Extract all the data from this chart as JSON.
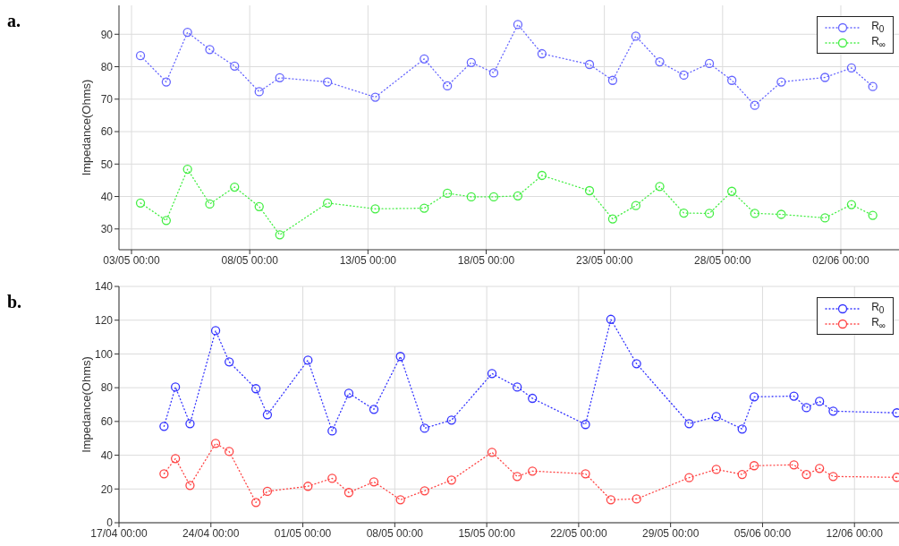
{
  "chart_data": [
    {
      "type": "line",
      "annotations": [
        "a."
      ],
      "ylabel": "Impedance(Ohms)",
      "xlim": [
        "--05-02T11:17",
        "--06-04T11:02"
      ],
      "ylim": [
        23.6,
        98.9
      ],
      "xticks": [
        {
          "value": "--05-03",
          "label": "03/05 00:00"
        },
        {
          "value": "--05-08",
          "label": "08/05 00:00"
        },
        {
          "value": "--05-13",
          "label": "13/05 00:00"
        },
        {
          "value": "--05-18",
          "label": "18/05 00:00"
        },
        {
          "value": "--05-23",
          "label": "23/05 00:00"
        },
        {
          "value": "--05-28",
          "label": "28/05 00:00"
        },
        {
          "value": "--06-02",
          "label": "02/06 00:00"
        }
      ],
      "yticks": [
        30,
        40,
        50,
        60,
        70,
        80,
        90
      ],
      "grid": true,
      "legend": "top right",
      "marker": "circle",
      "line_style": "dotted",
      "series": [
        {
          "name": "R$_{0}$",
          "color": "#6666ff",
          "x": [
            "--05-03T09:07",
            "--05-04T11:17",
            "--05-05T08:53",
            "--05-06T07:26",
            "--05-07T08:38",
            "--05-08T09:36",
            "--05-09T06:29",
            "--05-11T06:58",
            "--05-13T07:26",
            "--05-15T09:07",
            "--05-16T08:38",
            "--05-17T08:53",
            "--05-18T07:41",
            "--05-19T08:10",
            "--05-20T08:38",
            "--05-22T08:53",
            "--05-23T08:24",
            "--05-24T07:55",
            "--05-25T08:10",
            "--05-26T08:38",
            "--05-27T10:34",
            "--05-28T09:22",
            "--05-29T08:38",
            "--05-30T11:31",
            "--06-01T07:55",
            "--06-02T10:48",
            "--06-03T08:24"
          ],
          "values": [
            83.4,
            75.3,
            90.6,
            85.3,
            80.2,
            72.3,
            76.6,
            75.3,
            70.6,
            82.4,
            74.1,
            81.3,
            78.1,
            93.0,
            84.0,
            80.7,
            75.8,
            89.4,
            81.5,
            77.4,
            81.0,
            75.8,
            68.1,
            75.3,
            76.7,
            79.6,
            73.9
          ]
        },
        {
          "name": "R$_{∞}$",
          "color": "#44ee44",
          "x": [
            "--05-03T09:07",
            "--05-04T11:17",
            "--05-05T08:53",
            "--05-06T07:26",
            "--05-07T08:38",
            "--05-08T09:36",
            "--05-09T06:29",
            "--05-11T06:58",
            "--05-13T07:26",
            "--05-15T09:07",
            "--05-16T08:38",
            "--05-17T08:53",
            "--05-18T07:41",
            "--05-19T08:10",
            "--05-20T08:38",
            "--05-22T08:53",
            "--05-23T08:24",
            "--05-24T07:55",
            "--05-25T08:10",
            "--05-26T08:38",
            "--05-27T10:34",
            "--05-28T09:22",
            "--05-29T08:38",
            "--05-30T11:31",
            "--06-01T07:55",
            "--06-02T10:48",
            "--06-03T08:24"
          ],
          "values": [
            38.0,
            32.6,
            48.4,
            37.7,
            42.9,
            36.9,
            28.2,
            38.0,
            36.2,
            36.4,
            41.0,
            39.9,
            39.9,
            40.2,
            46.5,
            41.8,
            33.1,
            37.2,
            43.1,
            34.9,
            34.8,
            41.6,
            34.8,
            34.5,
            33.4,
            37.5,
            34.2
          ]
        }
      ]
    },
    {
      "type": "line",
      "annotations": [
        "b."
      ],
      "ylabel": "Impedance(Ohms)",
      "xlim": [
        "--04-17",
        "--06-15T09:22"
      ],
      "ylim": [
        0,
        140
      ],
      "xticks": [
        {
          "value": "--04-17",
          "label": "17/04 00:00"
        },
        {
          "value": "--04-24",
          "label": "24/04 00:00"
        },
        {
          "value": "--05-01",
          "label": "01/05 00:00"
        },
        {
          "value": "--05-08",
          "label": "08/05 00:00"
        },
        {
          "value": "--05-15",
          "label": "15/05 00:00"
        },
        {
          "value": "--05-22",
          "label": "22/05 00:00"
        },
        {
          "value": "--05-29",
          "label": "29/05 00:00"
        },
        {
          "value": "--06-05",
          "label": "05/06 00:00"
        },
        {
          "value": "--06-12",
          "label": "12/06 00:00"
        }
      ],
      "yticks": [
        0,
        20,
        40,
        60,
        80,
        100,
        120,
        140
      ],
      "grid": true,
      "legend": "top right",
      "marker": "circle",
      "line_style": "dotted",
      "series": [
        {
          "name": "R$_{0}$",
          "color": "#3333ff",
          "x": [
            "--04-20T10:19",
            "--04-21T07:12",
            "--04-22T09:50",
            "--04-24T08:38",
            "--04-25T09:22",
            "--04-27T10:19",
            "--04-28T07:12",
            "--05-01T09:22",
            "--05-03T05:31",
            "--05-04T12:00",
            "--05-06T09:50",
            "--05-08T10:19",
            "--05-10T06:29",
            "--05-12T07:41",
            "--05-15T09:36",
            "--05-17T07:41",
            "--05-18T11:31",
            "--05-22T12:29",
            "--05-24T10:48",
            "--05-26T09:50",
            "--05-30T09:50",
            "--06-01T11:31",
            "--06-03T10:48",
            "--06-04T08:38",
            "--06-07T09:22",
            "--06-08T08:10",
            "--06-09T08:10",
            "--06-10T09:07",
            "--06-15T05:31"
          ],
          "values": [
            57.1,
            80.4,
            58.7,
            113.8,
            95.3,
            79.4,
            64.0,
            96.3,
            54.4,
            76.7,
            67.2,
            98.5,
            56.0,
            60.8,
            88.4,
            80.4,
            73.7,
            58.2,
            120.5,
            94.2,
            58.7,
            62.9,
            55.5,
            74.6,
            75.0,
            68.2,
            71.9,
            66.1,
            65.1
          ]
        },
        {
          "name": "R$_{∞}$",
          "color": "#ff4444",
          "x": [
            "--04-20T10:19",
            "--04-21T07:12",
            "--04-22T09:50",
            "--04-24T08:38",
            "--04-25T09:22",
            "--04-27T10:19",
            "--04-28T07:12",
            "--05-01T09:22",
            "--05-03T05:31",
            "--05-04T12:00",
            "--05-06T09:50",
            "--05-08T10:19",
            "--05-10T06:29",
            "--05-12T07:41",
            "--05-15T09:36",
            "--05-17T07:41",
            "--05-18T11:31",
            "--05-22T12:29",
            "--05-24T10:48",
            "--05-26T09:50",
            "--05-30T09:50",
            "--06-01T11:31",
            "--06-03T10:48",
            "--06-04T08:38",
            "--06-07T09:22",
            "--06-08T08:10",
            "--06-09T08:10",
            "--06-10T09:07",
            "--06-15T05:31"
          ],
          "values": [
            29.0,
            38.0,
            22.1,
            47.0,
            42.2,
            12.0,
            18.6,
            21.6,
            26.3,
            17.9,
            24.2,
            13.6,
            18.9,
            25.3,
            41.7,
            27.4,
            30.6,
            29.0,
            13.6,
            14.1,
            26.7,
            31.6,
            28.6,
            33.8,
            34.3,
            28.6,
            32.2,
            27.4,
            26.9
          ]
        }
      ]
    }
  ]
}
